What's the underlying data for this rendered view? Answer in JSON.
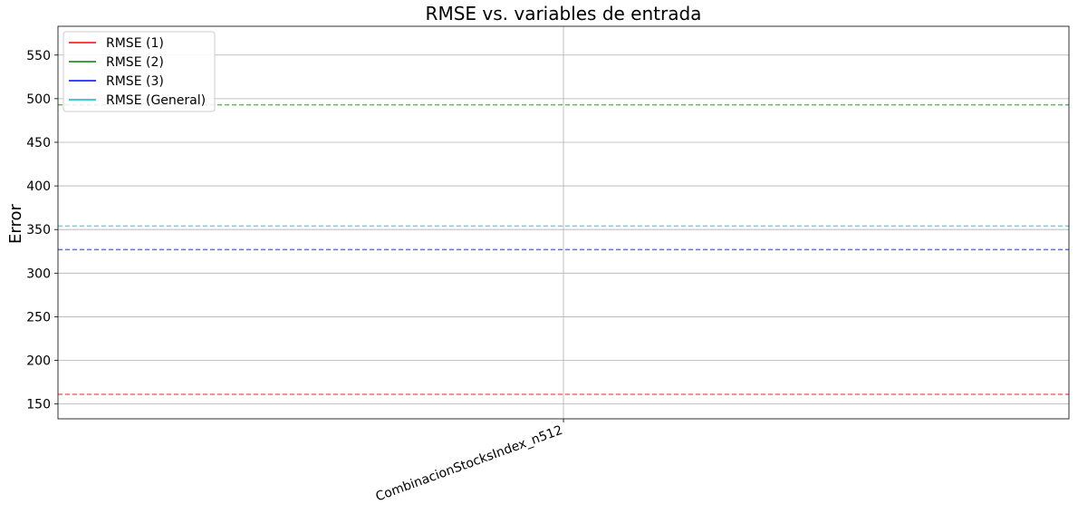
{
  "chart_data": {
    "type": "line",
    "title": "RMSE vs. variables de entrada",
    "xlabel": "",
    "ylabel": "Error",
    "categories": [
      "CombinacionStocksIndex_n512"
    ],
    "ylim": [
      133,
      583
    ],
    "yticks": [
      150,
      200,
      250,
      300,
      350,
      400,
      450,
      500,
      550
    ],
    "grid": true,
    "legend_position": "top-left",
    "series": [
      {
        "name": "RMSE (1)",
        "color": "#ff0000",
        "values": [
          161
        ]
      },
      {
        "name": "RMSE (2)",
        "color": "#008000",
        "values": [
          493
        ]
      },
      {
        "name": "RMSE (3)",
        "color": "#0000ff",
        "values": [
          327
        ]
      },
      {
        "name": "RMSE (General)",
        "color": "#00bfbf",
        "values": [
          354
        ]
      }
    ]
  }
}
